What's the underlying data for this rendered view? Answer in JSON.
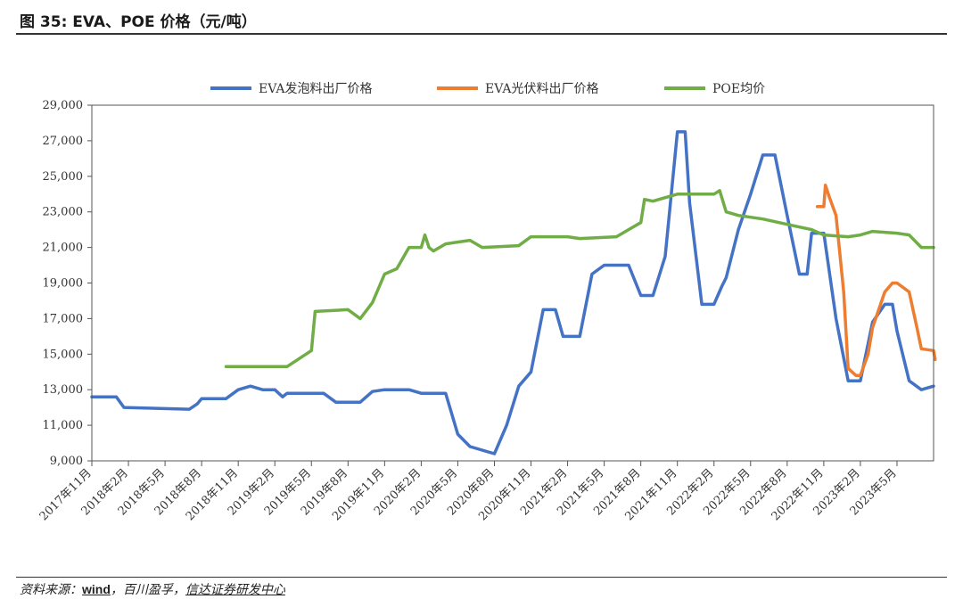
{
  "figure": {
    "title": "图 35:  EVA、POE 价格（元/吨）",
    "source_prefix": "资料来源：",
    "source_wind": "wind",
    "source_mid": "，百川盈孚，",
    "source_xd": "信达证券研发中心"
  },
  "chart_data": {
    "type": "line",
    "title": "",
    "xlabel": "",
    "ylabel": "",
    "ylim": [
      9000,
      29000
    ],
    "yticks": [
      9000,
      11000,
      13000,
      15000,
      17000,
      19000,
      21000,
      23000,
      25000,
      27000,
      29000
    ],
    "ytick_labels": [
      "9,000",
      "11,000",
      "13,000",
      "15,000",
      "17,000",
      "19,000",
      "21,000",
      "23,000",
      "25,000",
      "27,000",
      "29,000"
    ],
    "xlim": [
      "2017-11",
      "2023-08"
    ],
    "xtick_labels": [
      "2017年11月",
      "2018年2月",
      "2018年5月",
      "2018年8月",
      "2018年11月",
      "2019年2月",
      "2019年5月",
      "2019年8月",
      "2019年11月",
      "2020年2月",
      "2020年5月",
      "2020年8月",
      "2020年11月",
      "2021年2月",
      "2021年5月",
      "2021年8月",
      "2021年11月",
      "2022年2月",
      "2022年5月",
      "2022年8月",
      "2022年11月",
      "2023年2月",
      "2023年5月"
    ],
    "grid": false,
    "legend_position": "top-center",
    "series": [
      {
        "name": "EVA发泡料出厂价格",
        "color": "#4472C4",
        "points": [
          [
            "2017-11",
            12600
          ],
          [
            "2018-01",
            12600
          ],
          [
            "2018-01-20",
            12000
          ],
          [
            "2018-07",
            11900
          ],
          [
            "2018-07-20",
            12200
          ],
          [
            "2018-08",
            12500
          ],
          [
            "2018-10",
            12500
          ],
          [
            "2018-11",
            13000
          ],
          [
            "2018-12",
            13200
          ],
          [
            "2019-01",
            13000
          ],
          [
            "2019-02",
            13000
          ],
          [
            "2019-02-20",
            12600
          ],
          [
            "2019-03",
            12800
          ],
          [
            "2019-06",
            12800
          ],
          [
            "2019-07",
            12300
          ],
          [
            "2019-09",
            12300
          ],
          [
            "2019-10",
            12900
          ],
          [
            "2019-11",
            13000
          ],
          [
            "2020-01",
            13000
          ],
          [
            "2020-02",
            12800
          ],
          [
            "2020-04",
            12800
          ],
          [
            "2020-05",
            10500
          ],
          [
            "2020-06",
            9800
          ],
          [
            "2020-07",
            9600
          ],
          [
            "2020-08",
            9400
          ],
          [
            "2020-09",
            11000
          ],
          [
            "2020-10",
            13200
          ],
          [
            "2020-11",
            14000
          ],
          [
            "2020-12",
            17500
          ],
          [
            "2021-01",
            17500
          ],
          [
            "2021-01-20",
            16000
          ],
          [
            "2021-03",
            16000
          ],
          [
            "2021-04",
            19500
          ],
          [
            "2021-05",
            20000
          ],
          [
            "2021-07",
            20000
          ],
          [
            "2021-08",
            18300
          ],
          [
            "2021-09",
            18300
          ],
          [
            "2021-10",
            20500
          ],
          [
            "2021-11",
            27500
          ],
          [
            "2021-11-20",
            27500
          ],
          [
            "2021-12",
            23500
          ],
          [
            "2022-01",
            17800
          ],
          [
            "2022-02",
            17800
          ],
          [
            "2022-02-20",
            18800
          ],
          [
            "2022-03",
            19300
          ],
          [
            "2022-04",
            22000
          ],
          [
            "2022-05",
            24000
          ],
          [
            "2022-06",
            26200
          ],
          [
            "2022-07",
            26200
          ],
          [
            "2022-08",
            22800
          ],
          [
            "2022-09",
            19500
          ],
          [
            "2022-09-20",
            19500
          ],
          [
            "2022-10",
            21800
          ],
          [
            "2022-11",
            21800
          ],
          [
            "2022-12",
            17000
          ],
          [
            "2023-01",
            13500
          ],
          [
            "2023-02",
            13500
          ],
          [
            "2023-03",
            16800
          ],
          [
            "2023-04",
            17800
          ],
          [
            "2023-04-20",
            17800
          ],
          [
            "2023-05",
            16300
          ],
          [
            "2023-06",
            13500
          ],
          [
            "2023-07",
            13000
          ],
          [
            "2023-08",
            13200
          ]
        ]
      },
      {
        "name": "EVA光伏料出厂价格",
        "color": "#ED7D31",
        "points": [
          [
            "2022-10-15",
            23300
          ],
          [
            "2022-11",
            23300
          ],
          [
            "2022-11-05",
            24500
          ],
          [
            "2022-11-15",
            23800
          ],
          [
            "2022-12",
            22800
          ],
          [
            "2022-12-20",
            18500
          ],
          [
            "2023-01",
            14200
          ],
          [
            "2023-01-20",
            13800
          ],
          [
            "2023-02",
            13800
          ],
          [
            "2023-02-20",
            15000
          ],
          [
            "2023-03",
            16500
          ],
          [
            "2023-04",
            18500
          ],
          [
            "2023-04-20",
            19000
          ],
          [
            "2023-05",
            19000
          ],
          [
            "2023-06",
            18500
          ],
          [
            "2023-06-20",
            16500
          ],
          [
            "2023-07",
            15300
          ],
          [
            "2023-08",
            15200
          ],
          [
            "2023-08-05",
            14700
          ]
        ]
      },
      {
        "name": "POE均价",
        "color": "#70AD47",
        "points": [
          [
            "2018-10",
            14300
          ],
          [
            "2019-03",
            14300
          ],
          [
            "2019-05",
            15200
          ],
          [
            "2019-05-10",
            17400
          ],
          [
            "2019-08",
            17500
          ],
          [
            "2019-09",
            17000
          ],
          [
            "2019-10",
            17900
          ],
          [
            "2019-11",
            19500
          ],
          [
            "2019-12",
            19800
          ],
          [
            "2020-01",
            21000
          ],
          [
            "2020-02",
            21000
          ],
          [
            "2020-02-10",
            21700
          ],
          [
            "2020-02-20",
            21000
          ],
          [
            "2020-03",
            20800
          ],
          [
            "2020-04",
            21200
          ],
          [
            "2020-06",
            21400
          ],
          [
            "2020-07",
            21000
          ],
          [
            "2020-10",
            21100
          ],
          [
            "2020-11",
            21600
          ],
          [
            "2021-02",
            21600
          ],
          [
            "2021-03",
            21500
          ],
          [
            "2021-06",
            21600
          ],
          [
            "2021-07",
            22000
          ],
          [
            "2021-08",
            22400
          ],
          [
            "2021-08-10",
            23700
          ],
          [
            "2021-09",
            23600
          ],
          [
            "2021-10",
            23800
          ],
          [
            "2021-11",
            24000
          ],
          [
            "2022-02",
            24000
          ],
          [
            "2022-02-15",
            24200
          ],
          [
            "2022-03",
            23000
          ],
          [
            "2022-04",
            22800
          ],
          [
            "2022-06",
            22600
          ],
          [
            "2022-08",
            22300
          ],
          [
            "2022-10",
            22000
          ],
          [
            "2022-11",
            21700
          ],
          [
            "2023-01",
            21600
          ],
          [
            "2023-02",
            21700
          ],
          [
            "2023-03",
            21900
          ],
          [
            "2023-05",
            21800
          ],
          [
            "2023-06",
            21700
          ],
          [
            "2023-07",
            21000
          ],
          [
            "2023-08",
            21000
          ]
        ]
      }
    ]
  }
}
